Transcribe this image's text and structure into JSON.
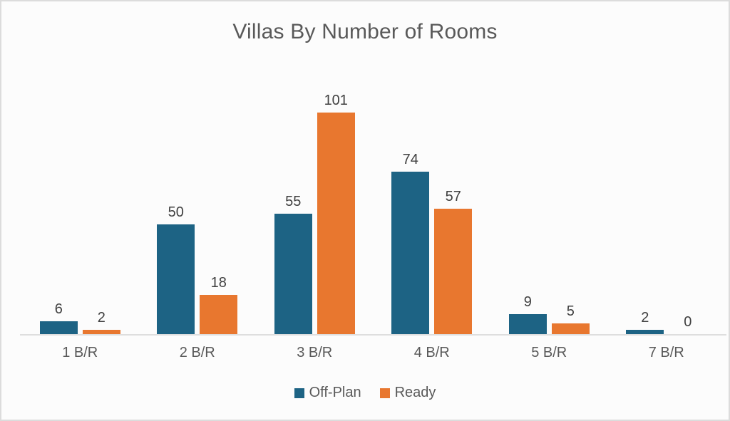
{
  "chart_data": {
    "type": "bar",
    "title": "Villas By Number of Rooms",
    "categories": [
      "1 B/R",
      "2 B/R",
      "3 B/R",
      "4 B/R",
      "5 B/R",
      "7 B/R"
    ],
    "series": [
      {
        "name": "Off-Plan",
        "color": "#1D6384",
        "values": [
          6,
          50,
          55,
          74,
          9,
          2
        ]
      },
      {
        "name": "Ready",
        "color": "#E8772F",
        "values": [
          2,
          18,
          101,
          57,
          5,
          0
        ]
      }
    ],
    "xlabel": "",
    "ylabel": "",
    "ylim": [
      0,
      101
    ],
    "grid": false,
    "y_axis_visible": false,
    "data_labels": true,
    "legend_position": "bottom",
    "colors": {
      "title_text": "#595959",
      "data_label_text": "#404040",
      "axis_line": "#dedede",
      "background": "#fcfcfc",
      "border": "#dcdcdc"
    }
  }
}
